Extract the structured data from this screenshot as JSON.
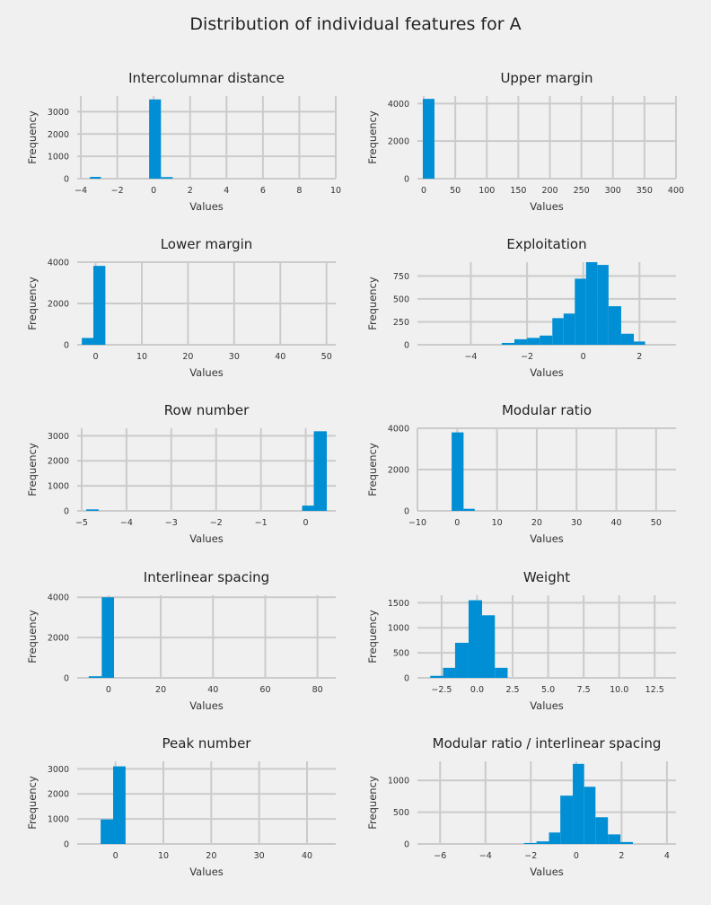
{
  "suptitle": "Distribution of individual features for A",
  "colors": {
    "background": "#f0f0f0",
    "bar": "#008fd5",
    "grid": "#cbcbcb"
  },
  "chart_data": [
    {
      "type": "bar",
      "title": "Intercolumnar distance",
      "xlabel": "Values",
      "ylabel": "Frequency",
      "xlim": [
        -4.2,
        10
      ],
      "ylim": [
        0,
        3700
      ],
      "xticks": [
        -4,
        -2,
        0,
        2,
        4,
        6,
        8,
        10
      ],
      "xtick_labels": [
        "−4",
        "−2",
        "0",
        "2",
        "4",
        "6",
        "8",
        "10"
      ],
      "yticks": [
        0,
        1000,
        2000,
        3000
      ],
      "bins": [
        {
          "x0": -3.5,
          "x1": -2.9,
          "value": 80
        },
        {
          "x0": -0.25,
          "x1": 0.4,
          "value": 3550
        },
        {
          "x0": 0.4,
          "x1": 1.05,
          "value": 70
        }
      ]
    },
    {
      "type": "bar",
      "title": "Upper margin",
      "xlabel": "Values",
      "ylabel": "Frequency",
      "xlim": [
        -10,
        400
      ],
      "ylim": [
        0,
        4400
      ],
      "xticks": [
        0,
        50,
        100,
        150,
        200,
        250,
        300,
        350,
        400
      ],
      "yticks": [
        0,
        2000,
        4000
      ],
      "bins": [
        {
          "x0": -1.5,
          "x1": 17,
          "value": 4250
        }
      ]
    },
    {
      "type": "bar",
      "title": "Lower margin",
      "xlabel": "Values",
      "ylabel": "Frequency",
      "xlim": [
        -4,
        52
      ],
      "ylim": [
        0,
        4000
      ],
      "xticks": [
        0,
        10,
        20,
        30,
        40,
        50
      ],
      "yticks": [
        0,
        2000,
        4000
      ],
      "bins": [
        {
          "x0": -3,
          "x1": -0.5,
          "value": 330
        },
        {
          "x0": -0.5,
          "x1": 2.1,
          "value": 3820
        }
      ]
    },
    {
      "type": "bar",
      "title": "Exploitation",
      "xlabel": "Values",
      "ylabel": "Frequency",
      "xlim": [
        -5.9,
        3.3
      ],
      "ylim": [
        0,
        900
      ],
      "xticks": [
        -4,
        -2,
        0,
        2
      ],
      "xtick_labels": [
        "−4",
        "−2",
        "0",
        "2"
      ],
      "yticks": [
        0,
        250,
        500,
        750
      ],
      "bins": [
        {
          "x0": -2.9,
          "x1": -2.45,
          "value": 20
        },
        {
          "x0": -2.45,
          "x1": -2.0,
          "value": 60
        },
        {
          "x0": -2.0,
          "x1": -1.55,
          "value": 75
        },
        {
          "x0": -1.55,
          "x1": -1.1,
          "value": 100
        },
        {
          "x0": -1.1,
          "x1": -0.7,
          "value": 290
        },
        {
          "x0": -0.7,
          "x1": -0.3,
          "value": 340
        },
        {
          "x0": -0.3,
          "x1": 0.1,
          "value": 720
        },
        {
          "x0": 0.1,
          "x1": 0.5,
          "value": 900
        },
        {
          "x0": 0.5,
          "x1": 0.9,
          "value": 870
        },
        {
          "x0": 0.9,
          "x1": 1.35,
          "value": 420
        },
        {
          "x0": 1.35,
          "x1": 1.8,
          "value": 120
        },
        {
          "x0": 1.8,
          "x1": 2.2,
          "value": 35
        }
      ]
    },
    {
      "type": "bar",
      "title": "Row number",
      "xlabel": "Values",
      "ylabel": "Frequency",
      "xlim": [
        -5.1,
        0.67
      ],
      "ylim": [
        0,
        3300
      ],
      "xticks": [
        -5,
        -4,
        -3,
        -2,
        -1,
        0
      ],
      "xtick_labels": [
        "−5",
        "−4",
        "−3",
        "−2",
        "−1",
        "0"
      ],
      "yticks": [
        0,
        1000,
        2000,
        3000
      ],
      "bins": [
        {
          "x0": -4.9,
          "x1": -4.62,
          "value": 60
        },
        {
          "x0": -0.08,
          "x1": 0.18,
          "value": 210
        },
        {
          "x0": 0.18,
          "x1": 0.47,
          "value": 3180
        }
      ]
    },
    {
      "type": "bar",
      "title": "Modular ratio",
      "xlabel": "Values",
      "ylabel": "Frequency",
      "xlim": [
        -10,
        55
      ],
      "ylim": [
        0,
        4000
      ],
      "xticks": [
        -10,
        0,
        10,
        20,
        30,
        40,
        50
      ],
      "xtick_labels": [
        "−10",
        "0",
        "10",
        "20",
        "30",
        "40",
        "50"
      ],
      "yticks": [
        0,
        2000,
        4000
      ],
      "bins": [
        {
          "x0": -1.4,
          "x1": 1.6,
          "value": 3800
        },
        {
          "x0": 1.6,
          "x1": 4.4,
          "value": 100
        }
      ]
    },
    {
      "type": "bar",
      "title": "Interlinear spacing",
      "xlabel": "Values",
      "ylabel": "Frequency",
      "xlim": [
        -12,
        87
      ],
      "ylim": [
        0,
        4100
      ],
      "xticks": [
        0,
        20,
        40,
        60,
        80
      ],
      "yticks": [
        0,
        2000,
        4000
      ],
      "bins": [
        {
          "x0": -7.6,
          "x1": -2.6,
          "value": 80
        },
        {
          "x0": -2.6,
          "x1": 2.1,
          "value": 4000
        }
      ]
    },
    {
      "type": "bar",
      "title": "Weight",
      "xlabel": "Values",
      "ylabel": "Frequency",
      "xlim": [
        -4.2,
        14
      ],
      "ylim": [
        0,
        1650
      ],
      "xticks": [
        -2.5,
        0,
        2.5,
        5,
        7.5,
        10,
        12.5
      ],
      "xtick_labels": [
        "−2.5",
        "0.0",
        "2.5",
        "5.0",
        "7.5",
        "10.0",
        "12.5"
      ],
      "yticks": [
        0,
        500,
        1000,
        1500
      ],
      "bins": [
        {
          "x0": -3.3,
          "x1": -2.4,
          "value": 40
        },
        {
          "x0": -2.4,
          "x1": -1.55,
          "value": 200
        },
        {
          "x0": -1.55,
          "x1": -0.6,
          "value": 700
        },
        {
          "x0": -0.6,
          "x1": 0.35,
          "value": 1550
        },
        {
          "x0": 0.35,
          "x1": 1.25,
          "value": 1250
        },
        {
          "x0": 1.25,
          "x1": 2.15,
          "value": 200
        }
      ]
    },
    {
      "type": "bar",
      "title": "Peak number",
      "xlabel": "Values",
      "ylabel": "Frequency",
      "xlim": [
        -8,
        46
      ],
      "ylim": [
        0,
        3300
      ],
      "xticks": [
        0,
        10,
        20,
        30,
        40
      ],
      "yticks": [
        0,
        1000,
        2000,
        3000
      ],
      "bins": [
        {
          "x0": -3.1,
          "x1": -0.5,
          "value": 980
        },
        {
          "x0": -0.5,
          "x1": 2.1,
          "value": 3100
        }
      ]
    },
    {
      "type": "bar",
      "title": "Modular ratio / interlinear spacing",
      "xlabel": "Values",
      "ylabel": "Frequency",
      "xlim": [
        -7,
        4.4
      ],
      "ylim": [
        0,
        1300
      ],
      "xticks": [
        -6,
        -4,
        -2,
        0,
        2,
        4
      ],
      "xtick_labels": [
        "−6",
        "−4",
        "−2",
        "0",
        "2",
        "4"
      ],
      "yticks": [
        0,
        500,
        1000
      ],
      "bins": [
        {
          "x0": -2.3,
          "x1": -1.75,
          "value": 15
        },
        {
          "x0": -1.75,
          "x1": -1.2,
          "value": 40
        },
        {
          "x0": -1.2,
          "x1": -0.7,
          "value": 180
        },
        {
          "x0": -0.7,
          "x1": -0.15,
          "value": 760
        },
        {
          "x0": -0.15,
          "x1": 0.35,
          "value": 1260
        },
        {
          "x0": 0.35,
          "x1": 0.85,
          "value": 900
        },
        {
          "x0": 0.85,
          "x1": 1.4,
          "value": 420
        },
        {
          "x0": 1.4,
          "x1": 1.95,
          "value": 150
        },
        {
          "x0": 1.95,
          "x1": 2.5,
          "value": 30
        }
      ]
    }
  ]
}
